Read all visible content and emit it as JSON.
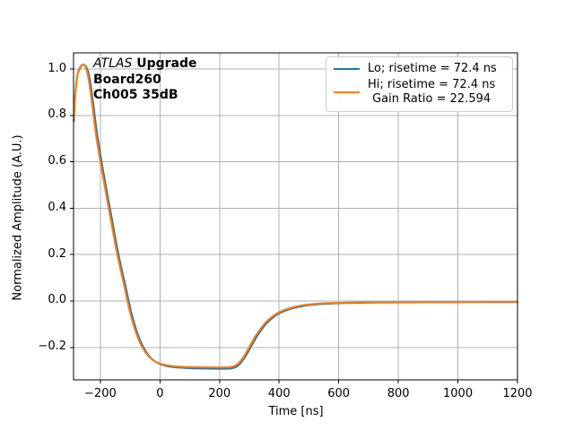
{
  "chart_data": {
    "type": "line",
    "title": "",
    "xlabel": "Time [ns]",
    "ylabel": "Normalized Amplitude (A.U.)",
    "xlim": [
      -290,
      1200
    ],
    "ylim": [
      -0.34,
      1.07
    ],
    "xticks": [
      -200,
      0,
      200,
      400,
      600,
      800,
      1000,
      1200
    ],
    "xtick_labels": [
      "−200",
      "0",
      "200",
      "400",
      "600",
      "800",
      "1000",
      "1200"
    ],
    "yticks": [
      -0.2,
      0.0,
      0.2,
      0.4,
      0.6,
      0.8,
      1.0
    ],
    "ytick_labels": [
      "−0.2",
      "0.0",
      "0.2",
      "0.4",
      "0.6",
      "0.8",
      "1.0"
    ],
    "grid": true,
    "legend_position": "upper right",
    "colors": {
      "grid": "#b0b0b0",
      "axes": "#000000",
      "background": "#ffffff"
    },
    "annotation": {
      "line1_italic": "ATLAS",
      "line1_bold": "Upgrade",
      "line2": "Board260",
      "line3": "Ch005 35dB"
    },
    "series": [
      {
        "label_lines": [
          "Lo; risetime = 72.4 ns"
        ],
        "color": "#1f77b4",
        "points": [
          [
            -289,
            0.775
          ],
          [
            -285,
            0.875
          ],
          [
            -281,
            0.938
          ],
          [
            -276,
            0.982
          ],
          [
            -270,
            1.0
          ],
          [
            -262,
            1.016
          ],
          [
            -255,
            1.02
          ],
          [
            -247,
            1.009
          ],
          [
            -240,
            0.985
          ],
          [
            -234,
            0.946
          ],
          [
            -228,
            0.892
          ],
          [
            -222,
            0.832
          ],
          [
            -216,
            0.768
          ],
          [
            -209,
            0.703
          ],
          [
            -202,
            0.648
          ],
          [
            -195,
            0.592
          ],
          [
            -188,
            0.542
          ],
          [
            -181,
            0.492
          ],
          [
            -174,
            0.442
          ],
          [
            -168,
            0.402
          ],
          [
            -161,
            0.352
          ],
          [
            -154,
            0.302
          ],
          [
            -147,
            0.252
          ],
          [
            -140,
            0.207
          ],
          [
            -132,
            0.157
          ],
          [
            -124,
            0.112
          ],
          [
            -115,
            0.062
          ],
          [
            -106,
            0.007
          ],
          [
            -97,
            -0.046
          ],
          [
            -88,
            -0.088
          ],
          [
            -79,
            -0.127
          ],
          [
            -70,
            -0.159
          ],
          [
            -61,
            -0.186
          ],
          [
            -52,
            -0.208
          ],
          [
            -43,
            -0.226
          ],
          [
            -34,
            -0.241
          ],
          [
            -25,
            -0.252
          ],
          [
            -15,
            -0.262
          ],
          [
            -5,
            -0.269
          ],
          [
            7,
            -0.275
          ],
          [
            22,
            -0.281
          ],
          [
            39,
            -0.284
          ],
          [
            59,
            -0.287
          ],
          [
            84,
            -0.289
          ],
          [
            114,
            -0.2905
          ],
          [
            149,
            -0.2915
          ],
          [
            184,
            -0.292
          ],
          [
            214,
            -0.2922
          ],
          [
            236,
            -0.2915
          ],
          [
            250,
            -0.288
          ],
          [
            260,
            -0.281
          ],
          [
            270,
            -0.269
          ],
          [
            279,
            -0.254
          ],
          [
            288,
            -0.237
          ],
          [
            297,
            -0.217
          ],
          [
            306,
            -0.196
          ],
          [
            315,
            -0.175
          ],
          [
            324,
            -0.155
          ],
          [
            334,
            -0.136
          ],
          [
            344,
            -0.118
          ],
          [
            354,
            -0.102
          ],
          [
            365,
            -0.087
          ],
          [
            377,
            -0.074
          ],
          [
            389,
            -0.062
          ],
          [
            402,
            -0.052
          ],
          [
            416,
            -0.044
          ],
          [
            431,
            -0.037
          ],
          [
            447,
            -0.031
          ],
          [
            464,
            -0.026
          ],
          [
            484,
            -0.021
          ],
          [
            506,
            -0.017
          ],
          [
            531,
            -0.014
          ],
          [
            559,
            -0.012
          ],
          [
            589,
            -0.01
          ],
          [
            621,
            -0.009
          ],
          [
            661,
            -0.008
          ],
          [
            711,
            -0.007
          ],
          [
            771,
            -0.0062
          ],
          [
            841,
            -0.0057
          ],
          [
            921,
            -0.0053
          ],
          [
            1011,
            -0.005
          ],
          [
            1111,
            -0.0048
          ],
          [
            1200,
            -0.0047
          ]
        ]
      },
      {
        "label_lines": [
          "Hi; risetime = 72.4 ns",
          "Gain Ratio = 22.594"
        ],
        "color": "#ff7f0e",
        "points": [
          [
            -289,
            0.79
          ],
          [
            -285,
            0.885
          ],
          [
            -281,
            0.945
          ],
          [
            -276,
            0.985
          ],
          [
            -272,
            1.0
          ],
          [
            -264,
            1.017
          ],
          [
            -257,
            1.02
          ],
          [
            -250,
            1.01
          ],
          [
            -244,
            0.985
          ],
          [
            -238,
            0.945
          ],
          [
            -232,
            0.89
          ],
          [
            -226,
            0.83
          ],
          [
            -220,
            0.765
          ],
          [
            -213,
            0.7
          ],
          [
            -206,
            0.645
          ],
          [
            -199,
            0.59
          ],
          [
            -192,
            0.54
          ],
          [
            -185,
            0.49
          ],
          [
            -178,
            0.44
          ],
          [
            -172,
            0.4
          ],
          [
            -165,
            0.35
          ],
          [
            -158,
            0.3
          ],
          [
            -151,
            0.25
          ],
          [
            -144,
            0.205
          ],
          [
            -136,
            0.155
          ],
          [
            -128,
            0.11
          ],
          [
            -119,
            0.06
          ],
          [
            -110,
            0.005
          ],
          [
            -101,
            -0.048
          ],
          [
            -92,
            -0.09
          ],
          [
            -83,
            -0.128
          ],
          [
            -74,
            -0.16
          ],
          [
            -65,
            -0.186
          ],
          [
            -56,
            -0.207
          ],
          [
            -47,
            -0.225
          ],
          [
            -38,
            -0.239
          ],
          [
            -29,
            -0.25
          ],
          [
            -19,
            -0.259
          ],
          [
            -9,
            -0.266
          ],
          [
            3,
            -0.271
          ],
          [
            18,
            -0.276
          ],
          [
            35,
            -0.279
          ],
          [
            55,
            -0.282
          ],
          [
            80,
            -0.284
          ],
          [
            110,
            -0.285
          ],
          [
            145,
            -0.2855
          ],
          [
            180,
            -0.286
          ],
          [
            210,
            -0.2862
          ],
          [
            232,
            -0.2855
          ],
          [
            246,
            -0.282
          ],
          [
            256,
            -0.276
          ],
          [
            266,
            -0.265
          ],
          [
            275,
            -0.251
          ],
          [
            284,
            -0.234
          ],
          [
            293,
            -0.214
          ],
          [
            302,
            -0.193
          ],
          [
            311,
            -0.172
          ],
          [
            320,
            -0.152
          ],
          [
            330,
            -0.133
          ],
          [
            340,
            -0.115
          ],
          [
            350,
            -0.099
          ],
          [
            361,
            -0.084
          ],
          [
            373,
            -0.071
          ],
          [
            385,
            -0.059
          ],
          [
            398,
            -0.049
          ],
          [
            412,
            -0.041
          ],
          [
            427,
            -0.034
          ],
          [
            443,
            -0.028
          ],
          [
            460,
            -0.023
          ],
          [
            480,
            -0.018
          ],
          [
            502,
            -0.0145
          ],
          [
            527,
            -0.0115
          ],
          [
            555,
            -0.0095
          ],
          [
            585,
            -0.008
          ],
          [
            617,
            -0.007
          ],
          [
            657,
            -0.006
          ],
          [
            707,
            -0.005
          ],
          [
            767,
            -0.0045
          ],
          [
            837,
            -0.004
          ],
          [
            917,
            -0.0037
          ],
          [
            1007,
            -0.0035
          ],
          [
            1107,
            -0.0033
          ],
          [
            1200,
            -0.0032
          ]
        ]
      }
    ]
  }
}
